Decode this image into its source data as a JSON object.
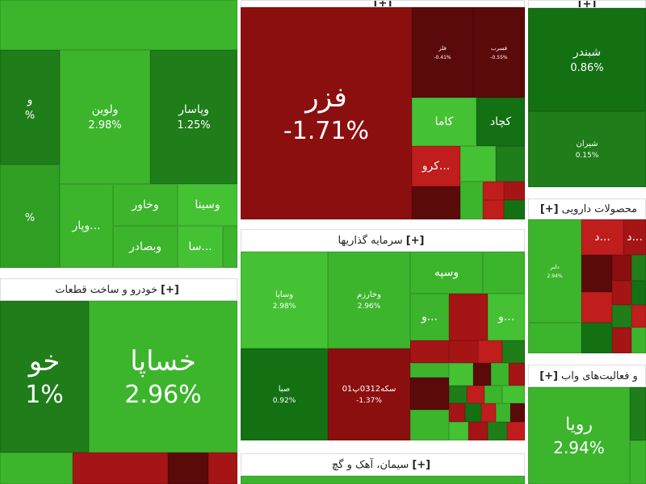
{
  "sectors": {
    "automobile": {
      "title": "خودرو و ساخت قطعات",
      "expand": "[+]"
    },
    "investment": {
      "title": "سرمایه گذاریها",
      "expand": "[+]"
    },
    "cement": {
      "title": "سیمان، آهک و گچ",
      "expand": "[+]"
    },
    "pharma": {
      "title": "محصولات دارویی",
      "expand": "[+]"
    },
    "services": {
      "title": "و فعالیت‌های واب",
      "expand": "[+]"
    },
    "metals": {
      "expand": "[+]"
    },
    "refinery": {
      "expand": "[+]"
    }
  },
  "tiles": {
    "fazr": {
      "symbol": "فزر",
      "change": "-1.71%"
    },
    "valvin": {
      "symbol": "ولوین",
      "change": "2.98%"
    },
    "vpasar": {
      "symbol": "وپاسار",
      "change": "1.25%"
    },
    "khaus": {
      "symbol": "خو",
      "change": "1%"
    },
    "khesapa": {
      "symbol": "خساپا",
      "change": "2.96%"
    },
    "vsapa": {
      "symbol": "وساپا",
      "change": "2.98%"
    },
    "vkharazm": {
      "symbol": "وخارزم",
      "change": "2.96%"
    },
    "sba": {
      "symbol": "صبا",
      "change": "0.92%"
    },
    "sekeh": {
      "symbol": "سکه0312پ01",
      "change": "-1.37%"
    },
    "shbandar": {
      "symbol": "شبندر",
      "change": "0.86%"
    },
    "shiran": {
      "symbol": "شیران",
      "change": "0.15%"
    },
    "royaa": {
      "symbol": "رویا",
      "change": "2.94%"
    },
    "kaama": {
      "symbol": "کاما"
    },
    "kchad": {
      "symbol": "کچاد"
    },
    "kro": {
      "symbol": "کرو..."
    },
    "vkhaavar": {
      "symbol": "وخاور"
    },
    "vsina": {
      "symbol": "وسینا"
    },
    "vpar": {
      "symbol": "وپار..."
    },
    "vbsadr": {
      "symbol": "وبصادر"
    },
    "saa": {
      "symbol": "سا..."
    },
    "vsepeh": {
      "symbol": "وسپه"
    },
    "vo1": {
      "symbol": "و..."
    },
    "vo2": {
      "symbol": "و..."
    },
    "dd1": {
      "symbol": "د..."
    },
    "dd2": {
      "symbol": "د..."
    },
    "vali_left": {
      "symbol": "و",
      "change": "%"
    },
    "vali_left2": {
      "change": "%"
    },
    "small_a": {
      "symbol": "فلز",
      "change": "-0.41%"
    },
    "small_b": {
      "symbol": "فسرب",
      "change": "-0.55%"
    },
    "dalbor": {
      "symbol": "دلبر",
      "change": "2.94%"
    }
  }
}
